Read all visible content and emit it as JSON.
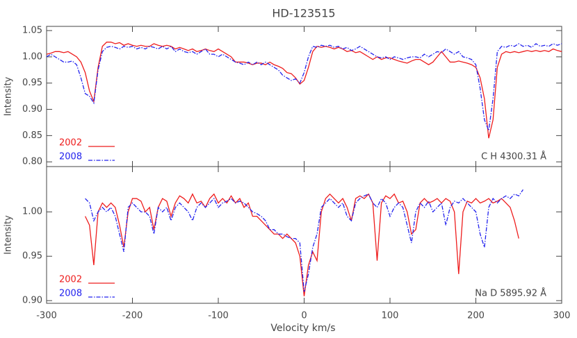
{
  "chart_data": [
    {
      "type": "line",
      "title": "HD-123515",
      "ylabel": "Intensity",
      "annotation": "C H 4300.31 Å",
      "legend": "lower left",
      "xlim": [
        -300,
        300
      ],
      "ylim": [
        0.791,
        1.058
      ],
      "yticks": [
        {
          "value": 0.8,
          "label": "0.80"
        },
        {
          "value": 0.85,
          "label": "0.85"
        },
        {
          "value": 0.9,
          "label": "0.90"
        },
        {
          "value": 0.95,
          "label": "0.95"
        },
        {
          "value": 1.0,
          "label": "1.00"
        },
        {
          "value": 1.05,
          "label": "1.05"
        }
      ],
      "x": [
        -300,
        -295,
        -290,
        -285,
        -280,
        -275,
        -270,
        -265,
        -260,
        -255,
        -250,
        -245,
        -240,
        -235,
        -230,
        -225,
        -220,
        -215,
        -210,
        -205,
        -200,
        -195,
        -190,
        -185,
        -180,
        -175,
        -170,
        -165,
        -160,
        -155,
        -150,
        -145,
        -140,
        -135,
        -130,
        -125,
        -120,
        -115,
        -110,
        -105,
        -100,
        -95,
        -90,
        -85,
        -80,
        -75,
        -70,
        -65,
        -60,
        -55,
        -50,
        -45,
        -40,
        -35,
        -30,
        -25,
        -20,
        -15,
        -10,
        -5,
        0,
        5,
        10,
        15,
        20,
        25,
        30,
        35,
        40,
        45,
        50,
        55,
        60,
        65,
        70,
        75,
        80,
        85,
        90,
        95,
        100,
        105,
        110,
        115,
        120,
        125,
        130,
        135,
        140,
        145,
        150,
        155,
        160,
        165,
        170,
        175,
        180,
        185,
        190,
        195,
        200,
        205,
        210,
        215,
        220,
        225,
        230,
        235,
        240,
        245,
        250,
        255,
        260,
        265,
        270,
        275,
        280,
        285,
        290,
        295,
        300
      ],
      "series": [
        {
          "name": "2002",
          "color": "#ee1c1c",
          "linestyle": "solid",
          "values": [
            1.005,
            1.007,
            1.01,
            1.01,
            1.008,
            1.01,
            1.005,
            1.0,
            0.99,
            0.97,
            0.935,
            0.915,
            0.98,
            1.02,
            1.028,
            1.028,
            1.025,
            1.027,
            1.022,
            1.025,
            1.022,
            1.02,
            1.022,
            1.02,
            1.02,
            1.025,
            1.022,
            1.02,
            1.022,
            1.02,
            1.015,
            1.018,
            1.015,
            1.012,
            1.015,
            1.01,
            1.012,
            1.015,
            1.012,
            1.01,
            1.015,
            1.01,
            1.005,
            1.0,
            0.99,
            0.99,
            0.99,
            0.988,
            0.985,
            0.988,
            0.988,
            0.985,
            0.99,
            0.985,
            0.982,
            0.978,
            0.97,
            0.968,
            0.96,
            0.948,
            0.955,
            0.98,
            1.01,
            1.02,
            1.018,
            1.02,
            1.018,
            1.015,
            1.018,
            1.015,
            1.01,
            1.012,
            1.008,
            1.01,
            1.005,
            1.0,
            0.995,
            1.0,
            0.995,
            0.998,
            0.998,
            0.995,
            0.992,
            0.99,
            0.988,
            0.992,
            0.995,
            0.995,
            0.99,
            0.985,
            0.99,
            1.0,
            1.01,
            1.0,
            0.99,
            0.99,
            0.992,
            0.99,
            0.988,
            0.985,
            0.98,
            0.96,
            0.92,
            0.845,
            0.88,
            0.98,
            1.005,
            1.01,
            1.008,
            1.01,
            1.008,
            1.01,
            1.012,
            1.01,
            1.012,
            1.01,
            1.012,
            1.01,
            1.015,
            1.012,
            1.01
          ]
        },
        {
          "name": "2008",
          "color": "#2222ee",
          "linestyle": "dashdot",
          "values": [
            1.0,
            1.005,
            1.0,
            0.995,
            0.99,
            0.99,
            0.992,
            0.985,
            0.96,
            0.93,
            0.925,
            0.912,
            0.975,
            1.01,
            1.018,
            1.02,
            1.018,
            1.015,
            1.02,
            1.018,
            1.02,
            1.015,
            1.018,
            1.015,
            1.02,
            1.018,
            1.015,
            1.02,
            1.015,
            1.02,
            1.01,
            1.015,
            1.01,
            1.008,
            1.01,
            1.005,
            1.01,
            1.015,
            1.005,
            1.005,
            1.0,
            1.005,
            1.0,
            0.995,
            0.99,
            0.988,
            0.985,
            0.99,
            0.985,
            0.99,
            0.985,
            0.99,
            0.985,
            0.98,
            0.975,
            0.965,
            0.96,
            0.955,
            0.958,
            0.95,
            0.97,
            1.0,
            1.02,
            1.018,
            1.022,
            1.02,
            1.022,
            1.018,
            1.02,
            1.015,
            1.018,
            1.012,
            1.015,
            1.02,
            1.015,
            1.01,
            1.005,
            1.0,
            0.998,
            1.0,
            0.995,
            1.0,
            0.998,
            0.995,
            0.998,
            1.0,
            1.0,
            0.998,
            1.005,
            1.0,
            1.005,
            1.01,
            1.008,
            1.015,
            1.01,
            1.005,
            1.01,
            1.0,
            0.998,
            0.995,
            0.985,
            0.94,
            0.88,
            0.86,
            0.92,
            1.01,
            1.02,
            1.018,
            1.022,
            1.02,
            1.025,
            1.02,
            1.022,
            1.018,
            1.025,
            1.02,
            1.022,
            1.02,
            1.025,
            1.022,
            1.025
          ]
        }
      ]
    },
    {
      "type": "line",
      "ylabel": "Intensity",
      "xlabel": "Velocity km/s",
      "annotation": "Na D 5895.92 Å",
      "legend": "lower left",
      "xlim": [
        -300,
        300
      ],
      "ylim": [
        0.897,
        1.051
      ],
      "xticks": [
        -300,
        -200,
        -100,
        0,
        100,
        200,
        300
      ],
      "yticks": [
        {
          "value": 0.9,
          "label": "0.90"
        },
        {
          "value": 0.95,
          "label": "0.95"
        },
        {
          "value": 1.0,
          "label": "1.00"
        }
      ],
      "x": [
        -255,
        -250,
        -245,
        -240,
        -235,
        -230,
        -225,
        -220,
        -215,
        -210,
        -205,
        -200,
        -195,
        -190,
        -185,
        -180,
        -175,
        -170,
        -165,
        -160,
        -155,
        -150,
        -145,
        -140,
        -135,
        -130,
        -125,
        -120,
        -115,
        -110,
        -105,
        -100,
        -95,
        -90,
        -85,
        -80,
        -75,
        -70,
        -65,
        -60,
        -55,
        -50,
        -45,
        -40,
        -35,
        -30,
        -25,
        -20,
        -15,
        -10,
        -5,
        0,
        5,
        10,
        15,
        20,
        25,
        30,
        35,
        40,
        45,
        50,
        55,
        60,
        65,
        70,
        75,
        80,
        85,
        90,
        95,
        100,
        105,
        110,
        115,
        120,
        125,
        130,
        135,
        140,
        145,
        150,
        155,
        160,
        165,
        170,
        175,
        180,
        185,
        190,
        195,
        200,
        205,
        210,
        215,
        220,
        225,
        230,
        235,
        240,
        245,
        250,
        255
      ],
      "series": [
        {
          "name": "2002",
          "color": "#ee1c1c",
          "linestyle": "solid",
          "values": [
            0.995,
            0.985,
            0.94,
            1.0,
            1.01,
            1.005,
            1.01,
            1.005,
            0.985,
            0.96,
            1.0,
            1.015,
            1.015,
            1.012,
            1.0,
            1.005,
            0.98,
            1.005,
            1.015,
            1.012,
            0.995,
            1.01,
            1.018,
            1.015,
            1.01,
            1.02,
            1.01,
            1.012,
            1.005,
            1.015,
            1.02,
            1.01,
            1.015,
            1.01,
            1.018,
            1.01,
            1.015,
            1.005,
            1.01,
            0.995,
            0.995,
            0.99,
            0.985,
            0.98,
            0.975,
            0.975,
            0.97,
            0.975,
            0.97,
            0.965,
            0.95,
            0.905,
            0.94,
            0.955,
            0.945,
            1.0,
            1.015,
            1.02,
            1.015,
            1.01,
            1.015,
            1.005,
            0.99,
            1.015,
            1.018,
            1.015,
            1.02,
            1.01,
            0.945,
            1.01,
            1.018,
            1.015,
            1.02,
            1.01,
            1.012,
            1.0,
            0.975,
            0.98,
            1.01,
            1.015,
            1.01,
            1.012,
            1.015,
            1.01,
            1.015,
            1.012,
            1.0,
            0.93,
            1.0,
            1.012,
            1.01,
            1.015,
            1.01,
            1.012,
            1.015,
            1.01,
            1.012,
            1.015,
            1.01,
            1.005,
            0.99,
            0.97,
            null
          ]
        },
        {
          "name": "2008",
          "color": "#2222ee",
          "linestyle": "dashdot",
          "values": [
            1.015,
            1.01,
            0.99,
            1.0,
            1.005,
            1.0,
            1.005,
            0.995,
            0.975,
            0.955,
            1.005,
            1.01,
            1.005,
            1.0,
            1.0,
            0.995,
            0.975,
            1.005,
            1.0,
            1.005,
            0.99,
            1.005,
            1.01,
            1.005,
            1.0,
            0.99,
            1.005,
            1.01,
            1.005,
            1.01,
            1.015,
            1.005,
            1.01,
            1.012,
            1.015,
            1.01,
            1.012,
            1.01,
            1.005,
            1.0,
            0.998,
            0.995,
            0.99,
            0.98,
            0.98,
            0.975,
            0.975,
            0.972,
            0.97,
            0.97,
            0.965,
            0.91,
            0.93,
            0.96,
            0.975,
            1.005,
            1.01,
            1.015,
            1.01,
            1.005,
            1.01,
            0.995,
            0.99,
            1.01,
            1.015,
            1.018,
            1.02,
            1.01,
            1.005,
            1.015,
            1.01,
            0.995,
            1.005,
            1.01,
            1.005,
            0.985,
            0.965,
            1.0,
            1.01,
            1.005,
            1.012,
            1.0,
            1.005,
            1.01,
            0.985,
            1.005,
            1.012,
            1.01,
            1.015,
            1.01,
            1.005,
            1.0,
            0.975,
            0.96,
            1.005,
            1.015,
            1.01,
            1.015,
            1.018,
            1.015,
            1.02,
            1.018,
            1.025
          ]
        }
      ]
    }
  ]
}
